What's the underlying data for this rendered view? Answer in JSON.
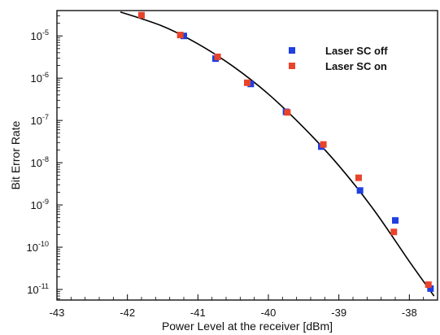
{
  "chart_data": {
    "type": "scatter",
    "title": "",
    "xlabel": "Power Level at the receiver [dBm]",
    "ylabel": "Bit Error Rate",
    "xlim": [
      -43,
      -37.6
    ],
    "ylim": [
      5e-12,
      0.0001
    ],
    "yscale": "log",
    "x_ticks": [
      -43,
      -42,
      -41,
      -40,
      -39,
      -38
    ],
    "x_tick_labels": [
      "-43",
      "-42",
      "-41",
      "-40",
      "-39",
      "-38"
    ],
    "y_ticks": [
      {
        "value": 1e-11,
        "mantissa": "10",
        "exponent": "-11"
      },
      {
        "value": 1e-10,
        "mantissa": "10",
        "exponent": "-10"
      },
      {
        "value": 1e-09,
        "mantissa": "10",
        "exponent": "-9"
      },
      {
        "value": 1e-08,
        "mantissa": "10",
        "exponent": "-8"
      },
      {
        "value": 1e-07,
        "mantissa": "10",
        "exponent": "-7"
      },
      {
        "value": 1e-06,
        "mantissa": "10",
        "exponent": "-6"
      },
      {
        "value": 1e-05,
        "mantissa": "10",
        "exponent": "-5"
      }
    ],
    "grid": false,
    "legend_position": "top-right",
    "series": [
      {
        "name": "Laser SC off",
        "color": "#1f3fe0",
        "marker": "square",
        "points": [
          {
            "x": -41.2,
            "y": 1e-05
          },
          {
            "x": -40.75,
            "y": 2.9e-06
          },
          {
            "x": -40.25,
            "y": 7.3e-07
          },
          {
            "x": -39.75,
            "y": 1.6e-07
          },
          {
            "x": -39.25,
            "y": 2.4e-08
          },
          {
            "x": -38.7,
            "y": 2.2e-09
          },
          {
            "x": -38.2,
            "y": 4.3e-10
          },
          {
            "x": -37.7,
            "y": 1.05e-11
          }
        ]
      },
      {
        "name": "Laser SC on",
        "color": "#e8442a",
        "marker": "square",
        "points": [
          {
            "x": -41.8,
            "y": 3.1e-05
          },
          {
            "x": -41.25,
            "y": 1.05e-05
          },
          {
            "x": -40.72,
            "y": 3.2e-06
          },
          {
            "x": -40.3,
            "y": 7.8e-07
          },
          {
            "x": -39.73,
            "y": 1.55e-07
          },
          {
            "x": -39.22,
            "y": 2.7e-08
          },
          {
            "x": -38.72,
            "y": 4.4e-09
          },
          {
            "x": -38.22,
            "y": 2.3e-10
          },
          {
            "x": -37.73,
            "y": 1.3e-11
          }
        ]
      }
    ],
    "fit_curve": {
      "color": "#000000",
      "points": [
        {
          "x": -42.1,
          "y": 3.7e-05
        },
        {
          "x": -41.5,
          "y": 1.7e-05
        },
        {
          "x": -41.0,
          "y": 6.5e-06
        },
        {
          "x": -40.5,
          "y": 1.9e-06
        },
        {
          "x": -40.0,
          "y": 4.2e-07
        },
        {
          "x": -39.5,
          "y": 6.8e-08
        },
        {
          "x": -39.0,
          "y": 8.5e-09
        },
        {
          "x": -38.5,
          "y": 7.5e-10
        },
        {
          "x": -38.0,
          "y": 4.6e-11
        },
        {
          "x": -37.65,
          "y": 7e-12
        }
      ]
    }
  }
}
